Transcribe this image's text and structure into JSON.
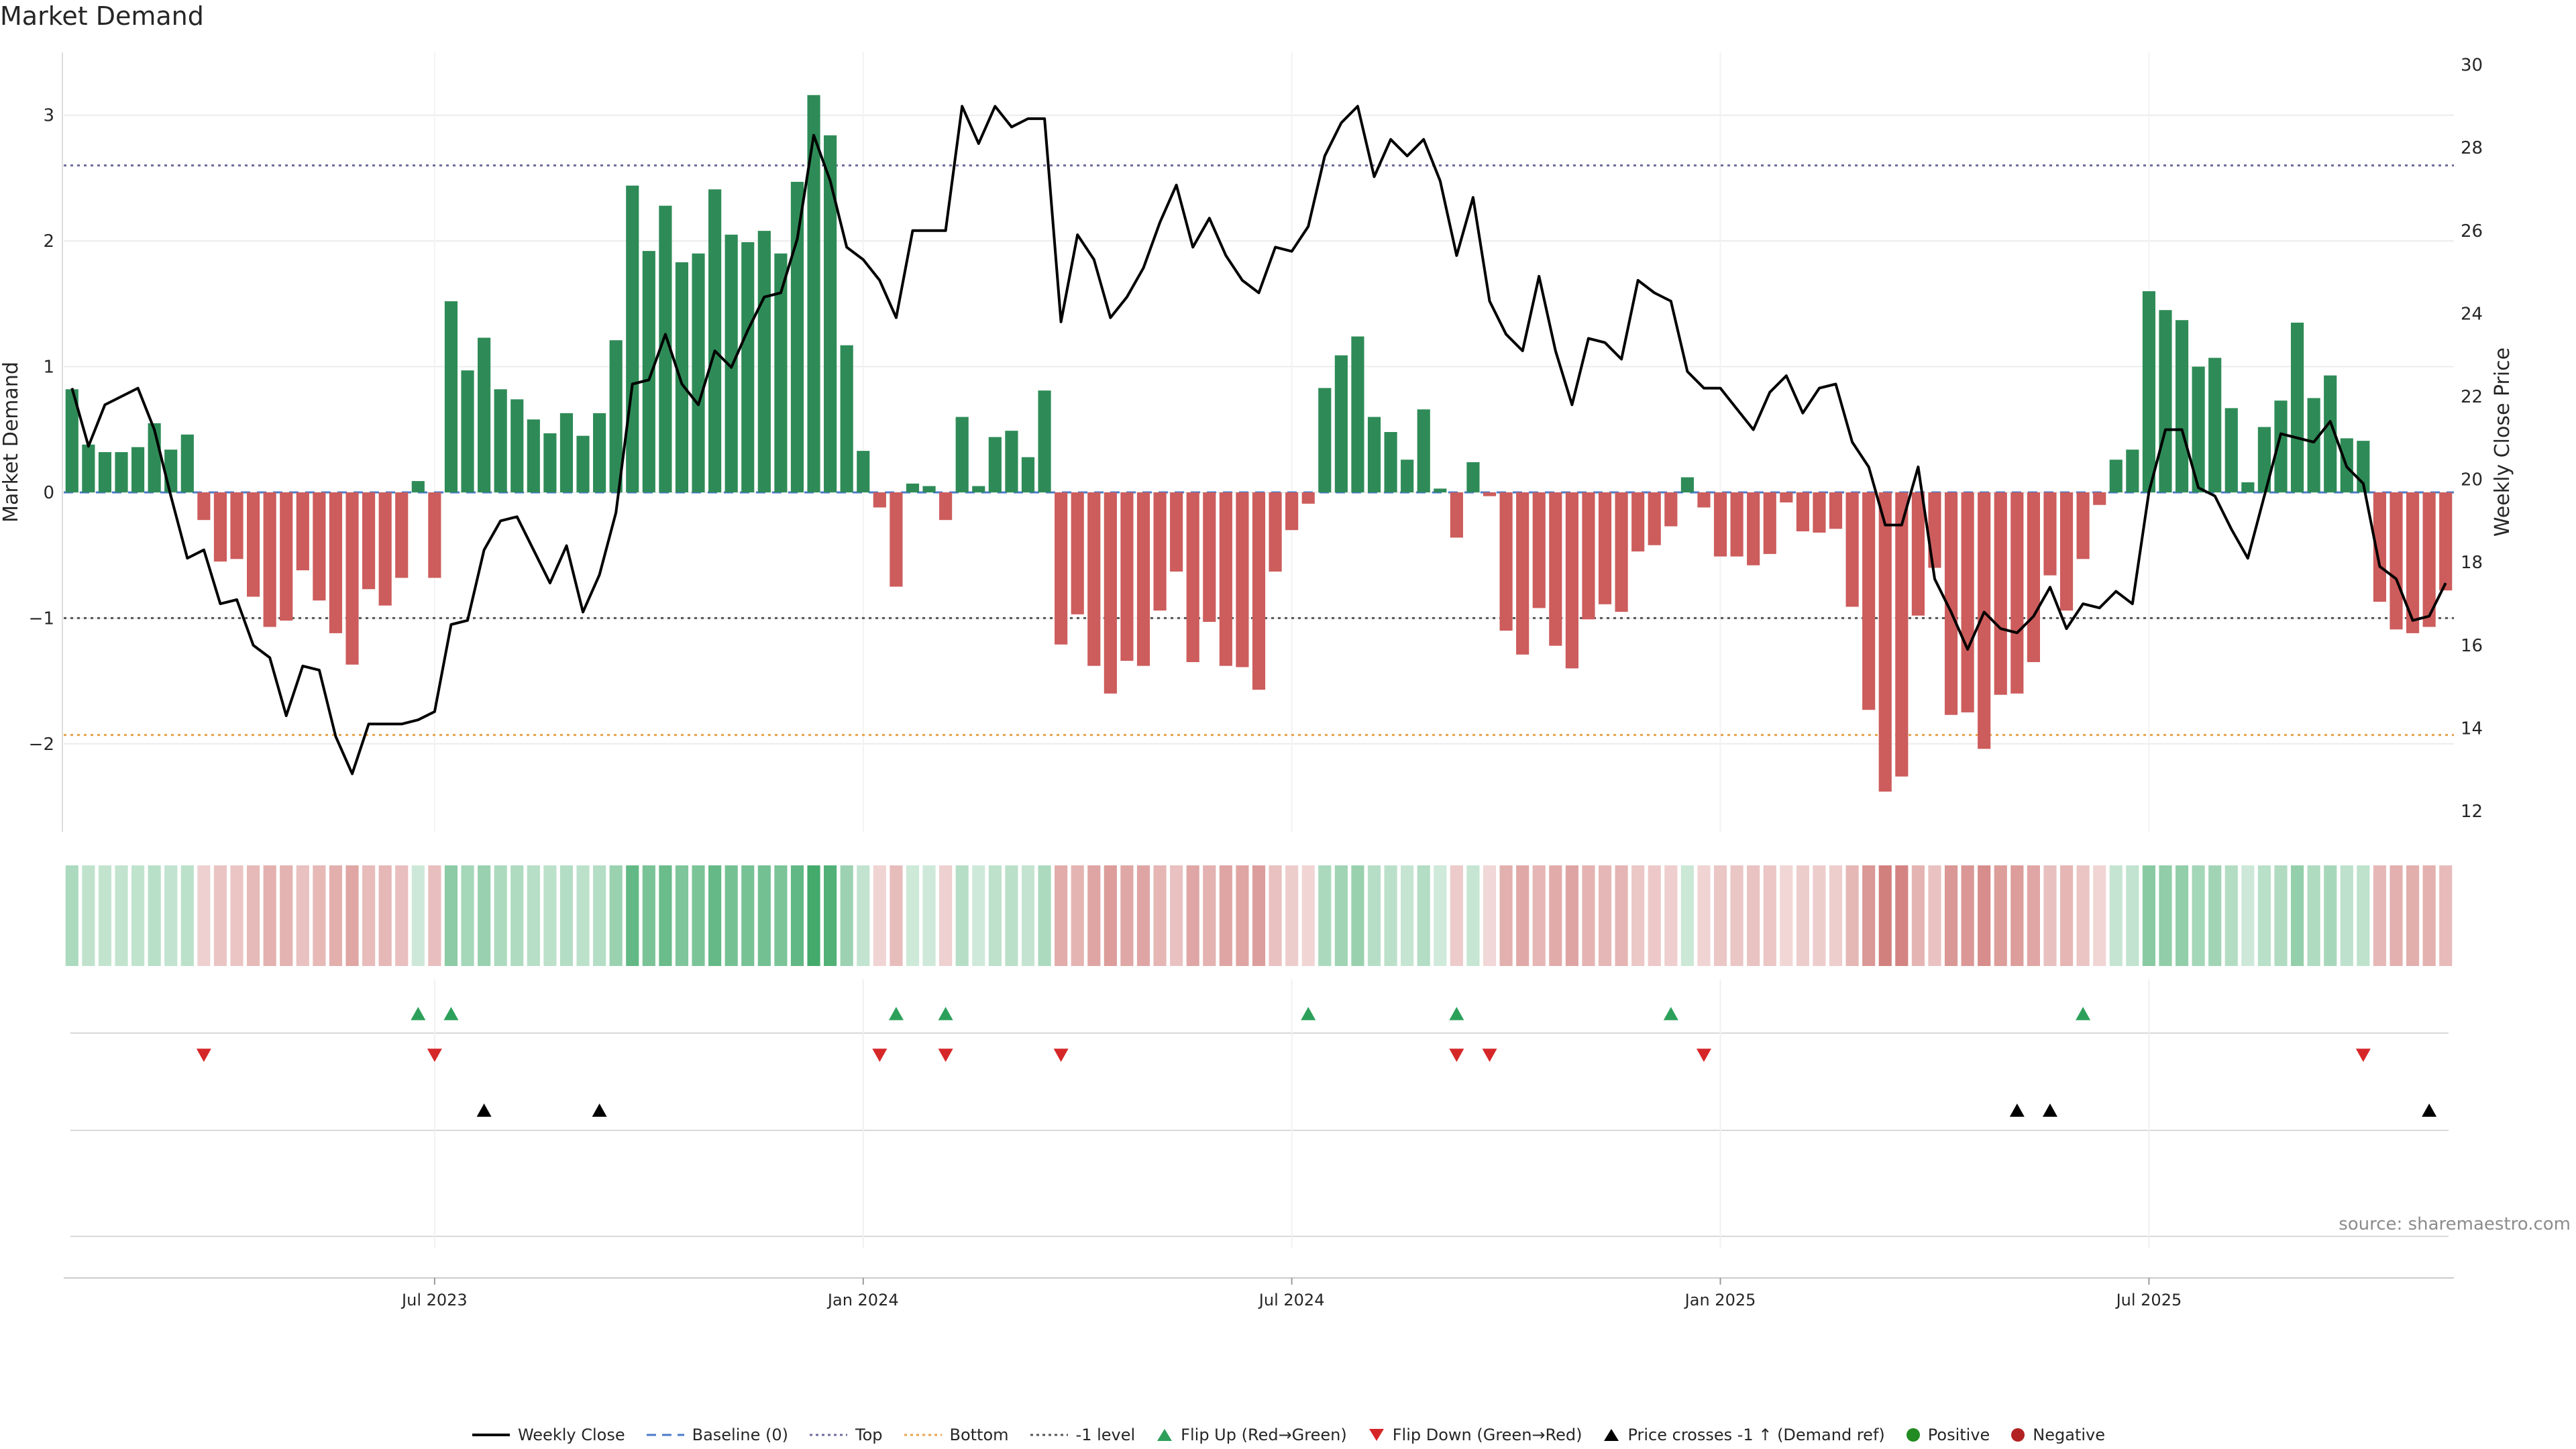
{
  "title": "Market Demand",
  "source": "source: sharemaestro.com",
  "colors": {
    "positive": "#2e8b57",
    "negative": "#cd5c5c",
    "price_line": "#000000",
    "baseline": "#4a7ac9",
    "top": "#6b6b9c",
    "bottom": "#e8a24a",
    "minus1": "#555555",
    "flip_up": "#2ca05a",
    "flip_down": "#d62728",
    "cross": "#000000",
    "legend_positive": "#228b22",
    "legend_negative": "#b22222"
  },
  "legend": [
    {
      "label": "Weekly Close",
      "symbol": "line",
      "icon": "solid-line-icon"
    },
    {
      "label": "Baseline (0)",
      "symbol": "dash",
      "icon": "dashed-line-icon"
    },
    {
      "label": "Top",
      "symbol": "dot-top",
      "icon": "dotted-line-icon"
    },
    {
      "label": "Bottom",
      "symbol": "dot-bottom",
      "icon": "dotted-line-icon"
    },
    {
      "label": "-1 level",
      "symbol": "dot-minus1",
      "icon": "dotted-line-icon"
    },
    {
      "label": "Flip Up (Red→Green)",
      "symbol": "tri-up-green",
      "icon": "triangle-up-icon"
    },
    {
      "label": "Flip Down (Green→Red)",
      "symbol": "tri-down-red",
      "icon": "triangle-down-icon"
    },
    {
      "label": "Price crosses -1 ↑ (Demand ref)",
      "symbol": "tri-up-black",
      "icon": "triangle-up-icon"
    },
    {
      "label": "Positive",
      "symbol": "circle-green",
      "icon": "circle-icon"
    },
    {
      "label": "Negative",
      "symbol": "circle-red",
      "icon": "circle-icon"
    }
  ],
  "chart_data": {
    "type": "bar",
    "title": "Market Demand",
    "ylabel": "Market Demand",
    "y2label": "Weekly Close Price",
    "ylim": [
      -2.7,
      3.5
    ],
    "y2lim": [
      11.5,
      30.3
    ],
    "yticks": [
      -2,
      -1,
      0,
      1,
      2,
      3
    ],
    "yticklabels": [
      "−2",
      "−1",
      "0",
      "1",
      "2",
      "3"
    ],
    "y2ticks": [
      12,
      14,
      16,
      18,
      20,
      22,
      24,
      26,
      28,
      30
    ],
    "x_time_ticks": [
      {
        "week": 22.5,
        "label": "Jul 2023"
      },
      {
        "week": 48.5,
        "label": "Jan 2024"
      },
      {
        "week": 74.5,
        "label": "Jul 2024"
      },
      {
        "week": 100.5,
        "label": "Jan 2025"
      },
      {
        "week": 126.5,
        "label": "Jul 2025"
      }
    ],
    "reference_lines": {
      "baseline": 0,
      "top": 2.6,
      "bottom": -1.93,
      "minus1": -1
    },
    "series": [
      {
        "name": "Market Demand",
        "values": [
          0.82,
          0.38,
          0.32,
          0.32,
          0.36,
          0.55,
          0.34,
          0.46,
          -0.22,
          -0.55,
          -0.53,
          -0.83,
          -1.07,
          -1.02,
          -0.62,
          -0.86,
          -1.12,
          -1.37,
          -0.77,
          -0.9,
          -0.68,
          0.09,
          -0.68,
          1.52,
          0.97,
          1.23,
          0.82,
          0.74,
          0.58,
          0.47,
          0.63,
          0.45,
          0.63,
          1.21,
          2.44,
          1.92,
          2.28,
          1.83,
          1.9,
          2.41,
          2.05,
          1.99,
          2.08,
          1.9,
          2.47,
          3.16,
          2.84,
          1.17,
          0.33,
          -0.12,
          -0.75,
          0.07,
          0.05,
          -0.22,
          0.6,
          0.05,
          0.44,
          0.49,
          0.28,
          0.81,
          -1.21,
          -0.97,
          -1.38,
          -1.6,
          -1.34,
          -1.38,
          -0.94,
          -0.63,
          -1.35,
          -1.03,
          -1.38,
          -1.39,
          -1.57,
          -0.63,
          -0.3,
          -0.09,
          0.83,
          1.09,
          1.24,
          0.6,
          0.48,
          0.26,
          0.66,
          0.03,
          -0.36,
          0.24,
          -0.03,
          -1.1,
          -1.29,
          -0.92,
          -1.22,
          -1.4,
          -1.01,
          -0.89,
          -0.95,
          -0.47,
          -0.42,
          -0.27,
          0.12,
          -0.12,
          -0.51,
          -0.51,
          -0.58,
          -0.49,
          -0.08,
          -0.31,
          -0.32,
          -0.29,
          -0.91,
          -1.73,
          -2.38,
          -2.26,
          -0.98,
          -0.6,
          -1.77,
          -1.75,
          -2.04,
          -1.61,
          -1.6,
          -1.35,
          -0.66,
          -0.94,
          -0.53,
          -0.1,
          0.26,
          0.34,
          1.6,
          1.45,
          1.37,
          1.0,
          1.07,
          0.67,
          0.08,
          0.52,
          0.73,
          1.35,
          0.75,
          0.93,
          0.43,
          0.41,
          -0.87,
          -1.09,
          -1.12,
          -1.07,
          -0.78
        ]
      },
      {
        "name": "Weekly Close",
        "values": [
          22.2,
          20.8,
          21.8,
          22.0,
          22.2,
          21.2,
          19.6,
          18.1,
          18.3,
          17.0,
          17.1,
          16.0,
          15.7,
          14.3,
          15.5,
          15.4,
          13.8,
          12.9,
          14.1,
          14.1,
          14.1,
          14.2,
          14.4,
          16.5,
          16.6,
          18.3,
          19.0,
          19.1,
          18.3,
          17.5,
          18.4,
          16.8,
          17.7,
          19.2,
          22.3,
          22.4,
          23.5,
          22.3,
          21.8,
          23.1,
          22.7,
          23.6,
          24.4,
          24.5,
          25.8,
          28.3,
          27.2,
          25.6,
          25.3,
          24.8,
          23.9,
          26.0,
          26.0,
          26.0,
          29.0,
          28.1,
          29.0,
          28.5,
          28.7,
          28.7,
          23.8,
          25.9,
          25.3,
          23.9,
          24.4,
          25.1,
          26.2,
          27.1,
          25.6,
          26.3,
          25.4,
          24.8,
          24.5,
          25.6,
          25.5,
          26.1,
          27.8,
          28.6,
          29.0,
          27.3,
          28.2,
          27.8,
          28.2,
          27.2,
          25.4,
          26.8,
          24.3,
          23.5,
          23.1,
          24.9,
          23.1,
          21.8,
          23.4,
          23.3,
          22.9,
          24.8,
          24.5,
          24.3,
          22.6,
          22.2,
          22.2,
          21.7,
          21.2,
          22.1,
          22.5,
          21.6,
          22.2,
          22.3,
          20.9,
          20.3,
          18.9,
          18.9,
          20.3,
          17.6,
          16.8,
          15.9,
          16.8,
          16.4,
          16.3,
          16.7,
          17.4,
          16.4,
          17.0,
          16.9,
          17.3,
          17.0,
          19.7,
          21.2,
          21.2,
          19.8,
          19.6,
          18.8,
          18.1,
          19.6,
          21.1,
          21.0,
          20.9,
          21.4,
          20.3,
          19.9,
          17.9,
          17.6,
          16.6,
          16.7,
          17.5
        ]
      }
    ],
    "flip_up_weeks": [
      21,
      23,
      50,
      53,
      75,
      84,
      97,
      122
    ],
    "flip_down_weeks": [
      8,
      22,
      49,
      53,
      60,
      84,
      86,
      99,
      139
    ],
    "price_cross_weeks": [
      25,
      32,
      118,
      120,
      143
    ]
  }
}
